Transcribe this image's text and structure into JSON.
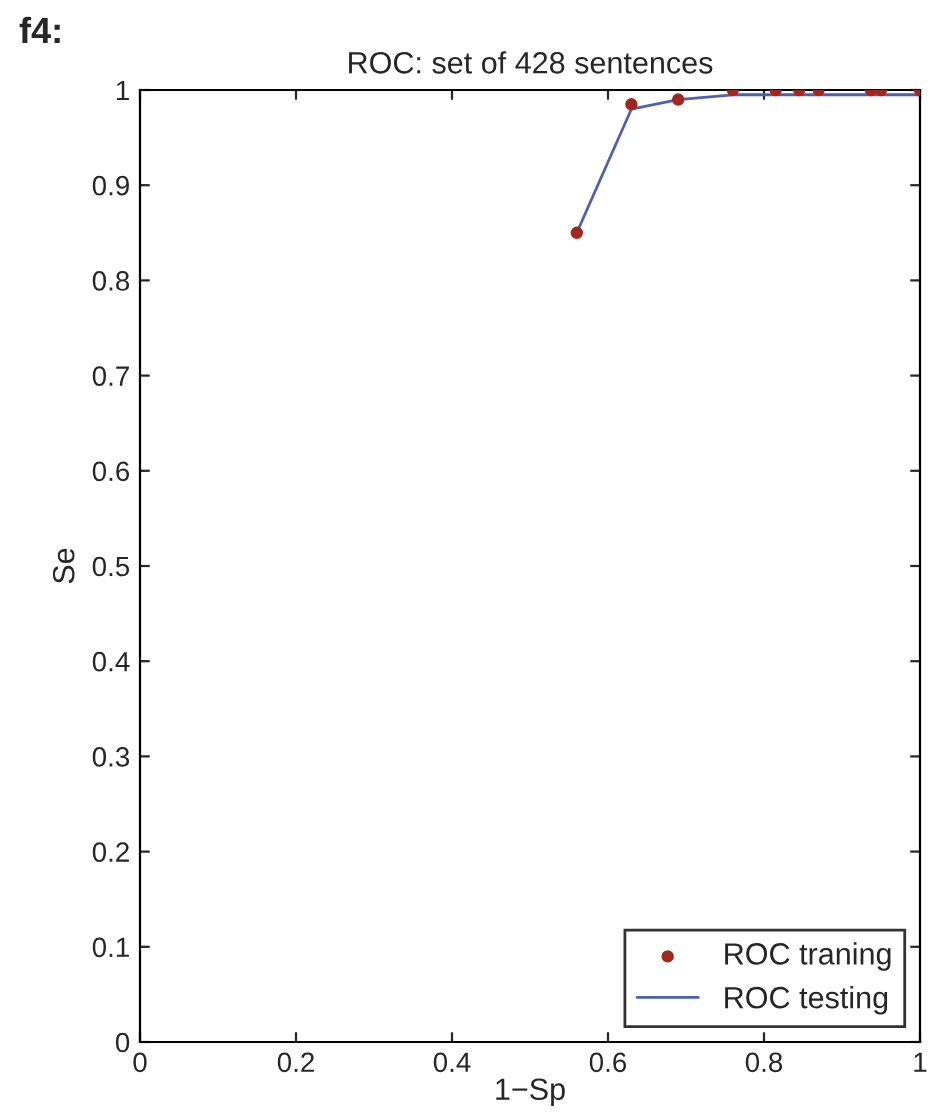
{
  "chart_data": {
    "type": "scatter",
    "title": "ROC: set of 428 sentences",
    "xlabel": "1−Sp",
    "ylabel": "Se",
    "annotations": [
      "f4:"
    ],
    "series": [
      {
        "name": "ROC traning",
        "color": "#a0281e",
        "marker": "circle",
        "x": [
          0.56,
          0.63,
          0.69,
          0.76,
          0.815,
          0.845,
          0.87,
          0.937,
          0.95,
          1.0
        ],
        "values": [
          0.85,
          0.985,
          0.99,
          1.0,
          1.0,
          1.0,
          1.0,
          1.0,
          1.0,
          1.0
        ]
      },
      {
        "name": "ROC testing",
        "type": "line",
        "color": "#5060b0",
        "marker": "none",
        "x": [
          0.56,
          0.63,
          0.69,
          0.76,
          1.0
        ],
        "values": [
          0.85,
          0.98,
          0.99,
          0.995,
          0.995
        ]
      }
    ],
    "xlim": [
      0,
      1
    ],
    "ylim": [
      0,
      1
    ],
    "xticks": [
      0,
      0.2,
      0.4,
      0.6,
      0.8,
      1
    ],
    "yticks": [
      0,
      0.1,
      0.2,
      0.3,
      0.4,
      0.5,
      0.6,
      0.7,
      0.8,
      0.9,
      1
    ],
    "grid": false,
    "legend": "bottom right"
  }
}
